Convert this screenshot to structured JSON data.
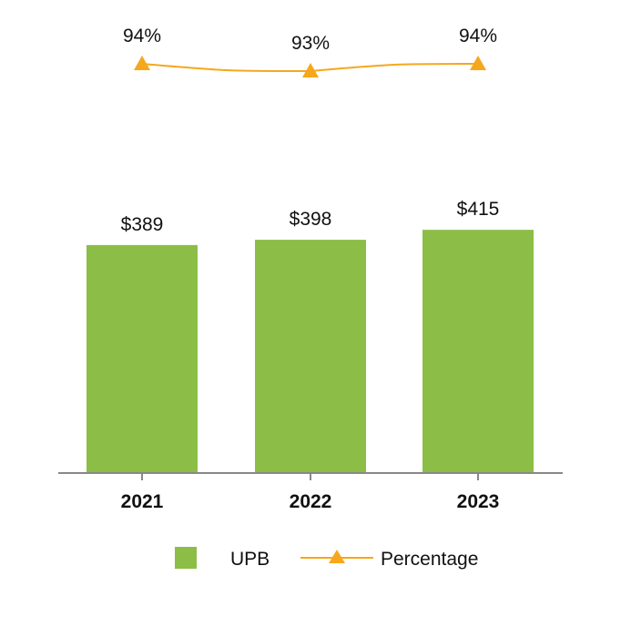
{
  "chart_data": {
    "type": "bar",
    "categories": [
      "2021",
      "2022",
      "2023"
    ],
    "series": [
      {
        "name": "UPB",
        "type": "bar",
        "values": [
          389,
          398,
          415
        ],
        "labels": [
          "$389",
          "$398",
          "$415"
        ],
        "color": "#8cbd46"
      },
      {
        "name": "Percentage",
        "type": "line",
        "marker": "triangle",
        "values": [
          94,
          93,
          94
        ],
        "labels": [
          "94%",
          "93%",
          "94%"
        ],
        "color": "#f5a81c"
      }
    ],
    "grid": false,
    "legend_position": "bottom"
  }
}
